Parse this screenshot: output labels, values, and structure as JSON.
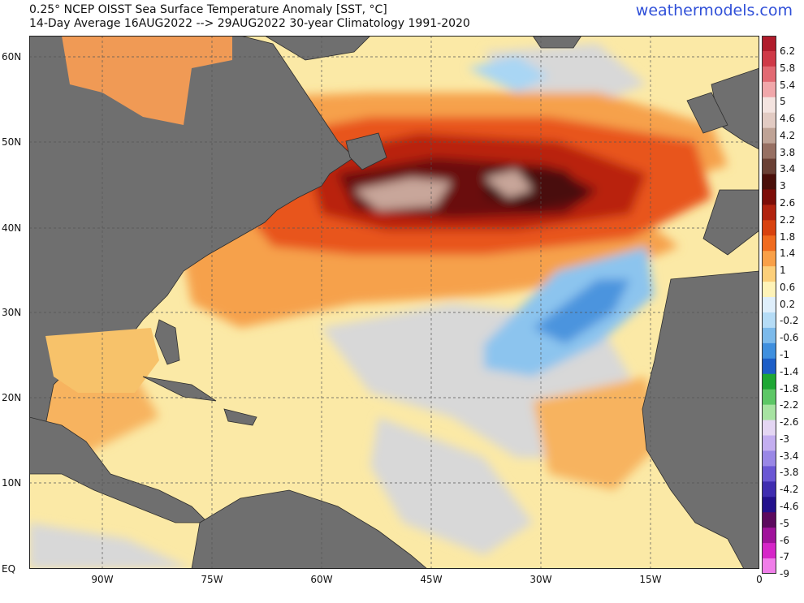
{
  "header": {
    "title_line1": "0.25° NCEP OISST Sea Surface Temperature Anomaly [SST, °C]",
    "title_line2": "14-Day Average 16AUG2022 --> 29AUG2022  30-year Climatology 1991-2020",
    "brand": "weathermodels.com"
  },
  "axes": {
    "lat_labels": [
      "60N",
      "50N",
      "40N",
      "30N",
      "20N",
      "10N",
      "EQ"
    ],
    "lon_labels": [
      "90W",
      "75W",
      "60W",
      "45W",
      "30W",
      "15W",
      "0"
    ]
  },
  "colorbar": {
    "labels": [
      "6.2",
      "5.8",
      "5.4",
      "5",
      "4.6",
      "4.2",
      "3.8",
      "3.4",
      "3",
      "2.6",
      "2.2",
      "1.8",
      "1.4",
      "1",
      "0.6",
      "0.2",
      "-0.2",
      "-0.6",
      "-1",
      "-1.4",
      "-1.8",
      "-2.2",
      "-2.6",
      "-3",
      "-3.4",
      "-3.8",
      "-4.2",
      "-4.6",
      "-5",
      "-6",
      "-7",
      "-9"
    ],
    "colors": [
      "#b01c2c",
      "#cf3a48",
      "#e26a73",
      "#f1a7aa",
      "#f4e4e0",
      "#e2cbc3",
      "#bfa396",
      "#977063",
      "#6a4035",
      "#4a0f0a",
      "#7d0d08",
      "#b1230f",
      "#d8420f",
      "#f06b1f",
      "#f9a048",
      "#fccf7a",
      "#fef3b8",
      "#dfeffb",
      "#b5dcf6",
      "#7cbaeb",
      "#3f8fde",
      "#1d5ec7",
      "#1ea735",
      "#5dc766",
      "#a7e3a2",
      "#e4d6f3",
      "#c3aef0",
      "#9987e6",
      "#6a57d4",
      "#3f2db0",
      "#23118c",
      "#5c0a5e",
      "#a0139b",
      "#d626c8",
      "#f07ee9"
    ]
  }
}
